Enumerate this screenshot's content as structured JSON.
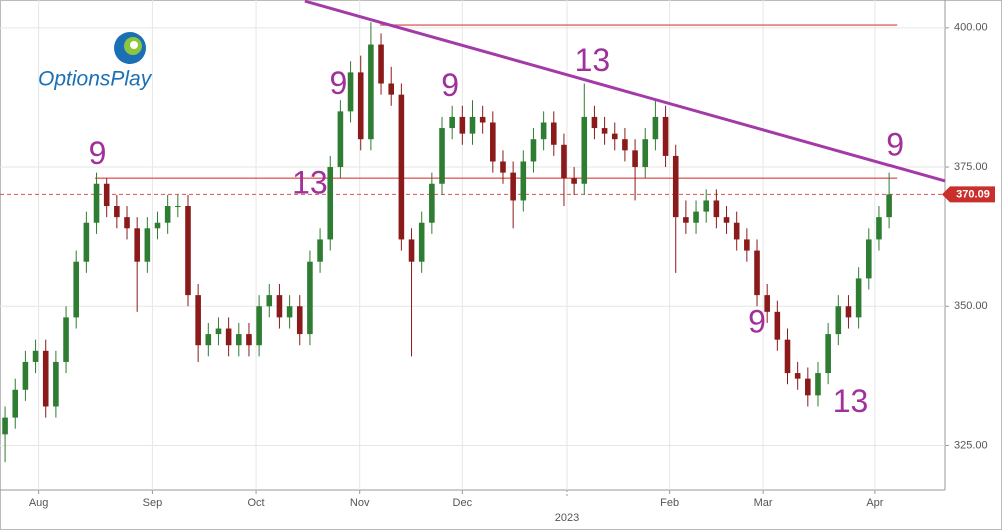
{
  "logo": "OptionsPlay",
  "chart_data": {
    "type": "candlestick",
    "open": [
      327,
      330,
      335,
      340,
      342,
      332,
      340,
      348,
      358,
      365,
      372,
      368,
      366,
      364,
      358,
      364,
      365,
      368,
      368,
      352,
      343,
      345,
      346,
      343,
      345,
      343,
      350,
      352,
      348,
      350,
      345,
      358,
      362,
      375,
      385,
      392,
      380,
      397,
      390,
      388,
      362,
      358,
      365,
      372,
      382,
      384,
      381,
      384,
      383,
      376,
      374,
      369,
      376,
      380,
      383,
      379,
      373,
      372,
      384,
      382,
      381,
      380,
      378,
      375,
      380,
      384,
      377,
      366,
      365,
      367,
      369,
      366,
      365,
      362,
      360,
      352,
      349,
      344,
      338,
      337,
      334,
      338,
      345,
      350,
      348,
      355,
      362,
      366
    ],
    "high": [
      332,
      337,
      342,
      344,
      344,
      342,
      350,
      360,
      367,
      374,
      373,
      370,
      368,
      366,
      366,
      367,
      370,
      370,
      370,
      354,
      347,
      348,
      348,
      347,
      347,
      352,
      354,
      354,
      352,
      352,
      360,
      364,
      377,
      387,
      394,
      395,
      401,
      399,
      393,
      390,
      364,
      367,
      374,
      384,
      386,
      386,
      387,
      386,
      385,
      378,
      376,
      378,
      382,
      385,
      385,
      381,
      375,
      390,
      386,
      384,
      383,
      382,
      380,
      382,
      387,
      386,
      379,
      369,
      369,
      371,
      371,
      368,
      367,
      364,
      362,
      354,
      351,
      346,
      340,
      339,
      340,
      347,
      352,
      352,
      357,
      364,
      368,
      374
    ],
    "low": [
      322,
      328,
      333,
      338,
      330,
      330,
      338,
      346,
      356,
      363,
      366,
      364,
      362,
      349,
      356,
      362,
      363,
      366,
      350,
      340,
      341,
      343,
      341,
      341,
      341,
      341,
      348,
      346,
      346,
      343,
      343,
      356,
      360,
      373,
      383,
      378,
      378,
      388,
      386,
      360,
      341,
      356,
      363,
      370,
      380,
      379,
      379,
      381,
      374,
      372,
      364,
      367,
      374,
      378,
      377,
      368,
      370,
      370,
      380,
      379,
      378,
      376,
      369,
      373,
      378,
      375,
      356,
      363,
      363,
      365,
      364,
      363,
      360,
      358,
      350,
      347,
      342,
      336,
      335,
      332,
      332,
      336,
      343,
      346,
      346,
      353,
      360,
      364
    ],
    "close": [
      330,
      335,
      340,
      342,
      332,
      340,
      348,
      358,
      365,
      372,
      368,
      366,
      364,
      358,
      364,
      365,
      368,
      368,
      352,
      343,
      345,
      346,
      343,
      345,
      343,
      350,
      352,
      348,
      350,
      345,
      358,
      362,
      375,
      385,
      392,
      380,
      397,
      390,
      388,
      362,
      358,
      365,
      372,
      382,
      384,
      381,
      384,
      383,
      376,
      374,
      369,
      376,
      380,
      383,
      379,
      373,
      372,
      384,
      382,
      381,
      380,
      378,
      375,
      380,
      384,
      377,
      366,
      365,
      367,
      369,
      366,
      365,
      362,
      360,
      352,
      349,
      344,
      338,
      337,
      334,
      338,
      345,
      350,
      348,
      355,
      362,
      366,
      370.09
    ],
    "up_color": "#2e7d32",
    "down_color": "#8b1a1a",
    "xlim": [
      -0.5,
      92.5
    ],
    "ylim": [
      317,
      405
    ],
    "xticks": [
      {
        "value": 3.3,
        "label": "Aug"
      },
      {
        "value": 14.5,
        "label": "Sep"
      },
      {
        "value": 24.7,
        "label": "Oct"
      },
      {
        "value": 34.9,
        "label": "Nov"
      },
      {
        "value": 45,
        "label": "Dec"
      },
      {
        "value": 65.4,
        "label": "Feb"
      },
      {
        "value": 74.6,
        "label": "Mar"
      },
      {
        "value": 85.6,
        "label": "Apr"
      }
    ],
    "year_tick": {
      "value": 55.3,
      "label": "2023"
    },
    "yticks": [
      {
        "value": 325,
        "label": "325.00"
      },
      {
        "value": 350,
        "label": "350.00"
      },
      {
        "value": 375,
        "label": "375.00"
      },
      {
        "value": 400,
        "label": "400.00"
      }
    ],
    "grid": true,
    "last_price": 370.09,
    "levels": [
      {
        "value": 400.5,
        "x": [
          36.9,
          87.8
        ]
      },
      {
        "value": 373,
        "x": [
          8.85,
          87.8
        ]
      }
    ],
    "trendline": {
      "x": [
        29.5,
        92.5
      ],
      "values": [
        404.8,
        372.5
      ],
      "color": "#a33aa8"
    },
    "counts": [
      {
        "text": "9",
        "x": 9.1,
        "y": 377.1
      },
      {
        "text": "13",
        "x": 30,
        "y": 371.8
      },
      {
        "text": "9",
        "x": 32.8,
        "y": 389.6
      },
      {
        "text": "9",
        "x": 43.8,
        "y": 389.3
      },
      {
        "text": "13",
        "x": 57.8,
        "y": 393.8
      },
      {
        "text": "9",
        "x": 87.6,
        "y": 378.6
      },
      {
        "text": "9",
        "x": 74,
        "y": 346.8
      },
      {
        "text": "13",
        "x": 83.2,
        "y": 332.5
      }
    ]
  }
}
